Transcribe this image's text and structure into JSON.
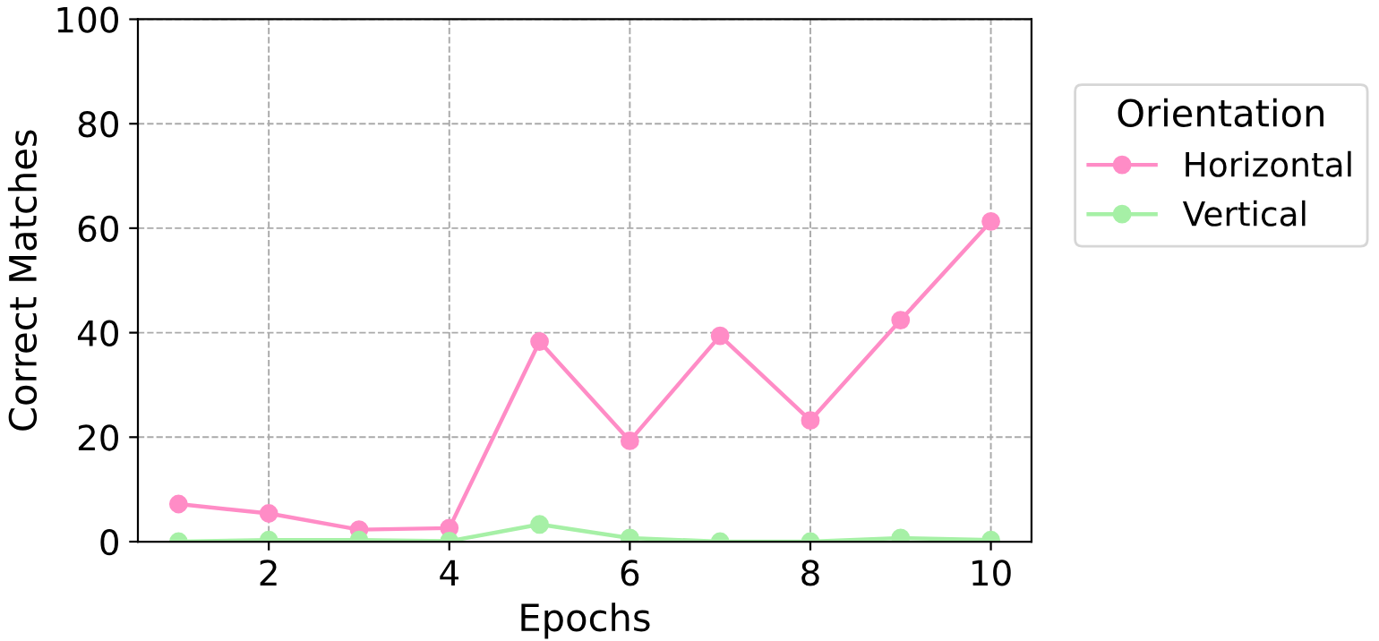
{
  "chart_data": {
    "type": "line",
    "xlabel": "Epochs",
    "ylabel": "Correct Matches",
    "legend_title": "Orientation",
    "x": [
      1,
      2,
      3,
      4,
      5,
      6,
      7,
      8,
      9,
      10
    ],
    "series": [
      {
        "name": "Horizontal",
        "color": "#ff8cc6",
        "values": [
          7.2,
          5.4,
          2.3,
          2.6,
          38.3,
          19.3,
          39.4,
          23.2,
          42.4,
          61.3
        ]
      },
      {
        "name": "Vertical",
        "color": "#a6f0a6",
        "values": [
          0,
          0.3,
          0.3,
          0.1,
          3.3,
          0.7,
          0,
          0,
          0.7,
          0.3
        ]
      }
    ],
    "xlim": [
      0.55,
      10.45
    ],
    "xticks": [
      2,
      4,
      6,
      8,
      10
    ],
    "ylim": [
      0,
      100
    ],
    "yticks": [
      0,
      20,
      40,
      60,
      80,
      100
    ],
    "grid": true,
    "legend": "right",
    "marker": "circle",
    "line_style": "solid"
  }
}
